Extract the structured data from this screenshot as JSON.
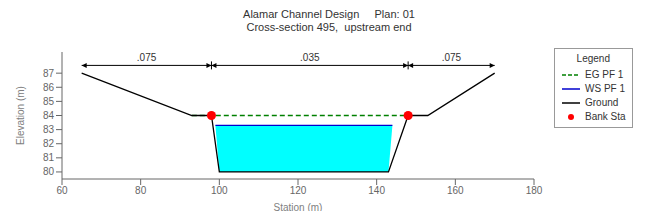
{
  "chart_data": {
    "type": "line",
    "title": "Alamar Channel Design     Plan: 01",
    "subtitle": "Cross-section 495,  upstream end",
    "xlabel": "Station (m)",
    "ylabel": "Elevation (m)",
    "xlim": [
      60,
      180
    ],
    "ylim": [
      79.5,
      88.5
    ],
    "xticks": [
      60,
      80,
      100,
      120,
      140,
      160,
      180
    ],
    "yticks": [
      80,
      81,
      82,
      83,
      84,
      85,
      86,
      87
    ],
    "grid": false,
    "legend": "upper right",
    "legend_title": "Legend",
    "series": [
      {
        "type": "area",
        "color": "#00FFFF",
        "x": [
          99.0,
          100,
          143,
          144.0
        ],
        "values": [
          83.3,
          80.0,
          80.0,
          83.3
        ]
      },
      {
        "name": "EG PF 1",
        "type": "line",
        "color": "#008000",
        "line_style": "dashed",
        "x": [
          93.0,
          148.0
        ],
        "values": [
          84.0,
          84.0
        ]
      },
      {
        "name": "WS PF 1",
        "type": "line",
        "color": "#0000CD",
        "line_style": "solid",
        "x": [
          99.0,
          144.0
        ],
        "values": [
          83.3,
          83.3
        ]
      },
      {
        "name": "Ground",
        "type": "line",
        "color": "#000000",
        "line_style": "solid",
        "x": [
          65,
          93,
          98,
          100,
          143,
          148,
          153,
          170
        ],
        "values": [
          87.0,
          84.0,
          84.0,
          80.0,
          80.0,
          84.0,
          84.0,
          87.0
        ]
      },
      {
        "name": "Bank Sta",
        "type": "scatter",
        "color": "#FF0000",
        "marker": "circle",
        "x": [
          98,
          148
        ],
        "values": [
          84.0,
          84.0
        ]
      }
    ],
    "dimension_line": {
      "y": 87.55,
      "x": [
        65,
        98,
        148,
        170
      ]
    },
    "annotations": [
      {
        "text": ".075",
        "x": 81.5,
        "y": 87.55
      },
      {
        "text": ".035",
        "x": 123,
        "y": 87.55
      },
      {
        "text": ".075",
        "x": 159,
        "y": 87.55
      }
    ]
  }
}
